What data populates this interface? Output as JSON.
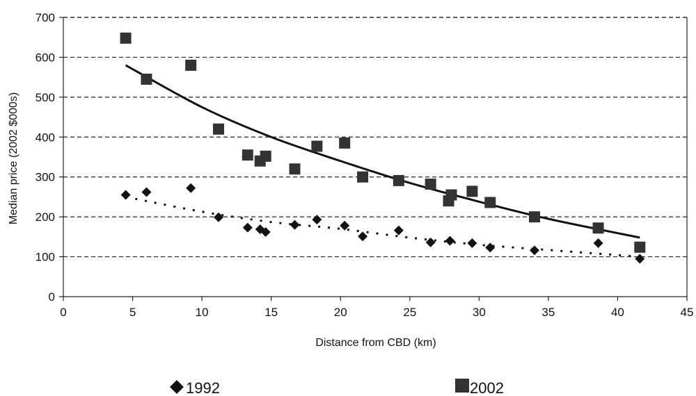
{
  "chart_data": {
    "type": "scatter",
    "title": "",
    "xlabel": "Distance from CBD (km)",
    "ylabel": "Median price (2002 $000s)",
    "xlim": [
      0,
      45
    ],
    "ylim": [
      0,
      700
    ],
    "x_ticks": [
      0,
      5,
      10,
      15,
      20,
      25,
      30,
      35,
      40,
      45
    ],
    "y_ticks": [
      0,
      100,
      200,
      300,
      400,
      500,
      600,
      700
    ],
    "grid": "horizontal dashed",
    "legend_position": "bottom",
    "series": [
      {
        "name": "1992",
        "marker": "diamond",
        "color": "#111111",
        "points": [
          [
            4.5,
            255
          ],
          [
            6.0,
            262
          ],
          [
            9.2,
            272
          ],
          [
            11.2,
            199
          ],
          [
            13.3,
            173
          ],
          [
            14.2,
            169
          ],
          [
            14.6,
            162
          ],
          [
            16.7,
            180
          ],
          [
            18.3,
            193
          ],
          [
            20.3,
            178
          ],
          [
            21.6,
            151
          ],
          [
            24.2,
            166
          ],
          [
            26.5,
            136
          ],
          [
            27.9,
            140
          ],
          [
            29.5,
            134
          ],
          [
            30.8,
            123
          ],
          [
            34.0,
            116
          ],
          [
            38.6,
            134
          ],
          [
            41.6,
            95
          ]
        ],
        "trendline": {
          "style": "dotted",
          "points": [
            [
              4.5,
              250
            ],
            [
              10,
              213
            ],
            [
              15,
              187
            ],
            [
              20,
              170
            ],
            [
              25,
              148
            ],
            [
              30,
              130
            ],
            [
              35,
              117
            ],
            [
              41.6,
              100
            ]
          ]
        }
      },
      {
        "name": "2002",
        "marker": "square",
        "color": "#333333",
        "points": [
          [
            4.5,
            648
          ],
          [
            6.0,
            545
          ],
          [
            9.2,
            580
          ],
          [
            11.2,
            420
          ],
          [
            13.3,
            355
          ],
          [
            14.2,
            340
          ],
          [
            14.6,
            352
          ],
          [
            16.7,
            320
          ],
          [
            18.3,
            377
          ],
          [
            20.3,
            385
          ],
          [
            21.6,
            300
          ],
          [
            24.2,
            291
          ],
          [
            26.5,
            282
          ],
          [
            27.8,
            240
          ],
          [
            28.0,
            255
          ],
          [
            29.5,
            264
          ],
          [
            30.8,
            236
          ],
          [
            34.0,
            200
          ],
          [
            38.6,
            172
          ],
          [
            41.6,
            124
          ]
        ],
        "trendline": {
          "style": "solid",
          "points": [
            [
              4.5,
              580
            ],
            [
              10,
              475
            ],
            [
              15,
              400
            ],
            [
              20,
              340
            ],
            [
              25,
              285
            ],
            [
              30,
              238
            ],
            [
              35,
              195
            ],
            [
              41.6,
              148
            ]
          ]
        }
      }
    ]
  }
}
